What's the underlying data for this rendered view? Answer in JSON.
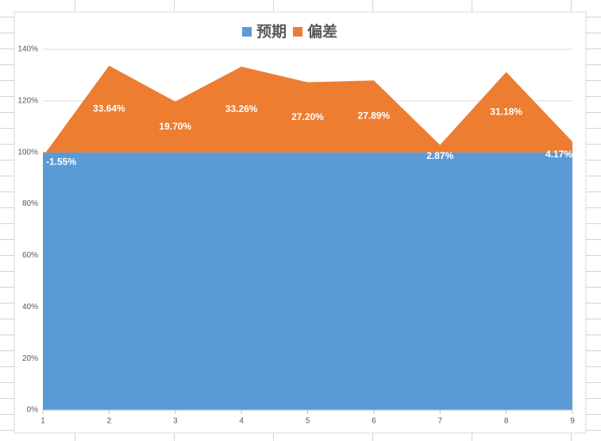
{
  "chart_data": {
    "type": "stacked_area",
    "categories": [
      "1",
      "2",
      "3",
      "4",
      "5",
      "6",
      "7",
      "8",
      "9"
    ],
    "series": [
      {
        "name": "预期",
        "color": "#5b9bd5",
        "values": [
          100,
          100,
          100,
          100,
          100,
          100,
          100,
          100,
          100
        ]
      },
      {
        "name": "偏差",
        "color": "#ed7d31",
        "values": [
          -1.55,
          33.64,
          19.7,
          33.26,
          27.2,
          27.89,
          2.87,
          31.18,
          4.17
        ],
        "value_labels": [
          "-1.55%",
          "33.64%",
          "19.70%",
          "33.26%",
          "27.20%",
          "27.89%",
          "2.87%",
          "31.18%",
          "4.17%"
        ]
      }
    ],
    "ylim": [
      0,
      140
    ],
    "yticks": [
      {
        "value": 0,
        "label": "0%"
      },
      {
        "value": 20,
        "label": "20%"
      },
      {
        "value": 40,
        "label": "40%"
      },
      {
        "value": 60,
        "label": "60%"
      },
      {
        "value": 80,
        "label": "80%"
      },
      {
        "value": 100,
        "label": "100%"
      },
      {
        "value": 120,
        "label": "120%"
      },
      {
        "value": 140,
        "label": "140%"
      }
    ],
    "grid": true,
    "legend": "top"
  }
}
